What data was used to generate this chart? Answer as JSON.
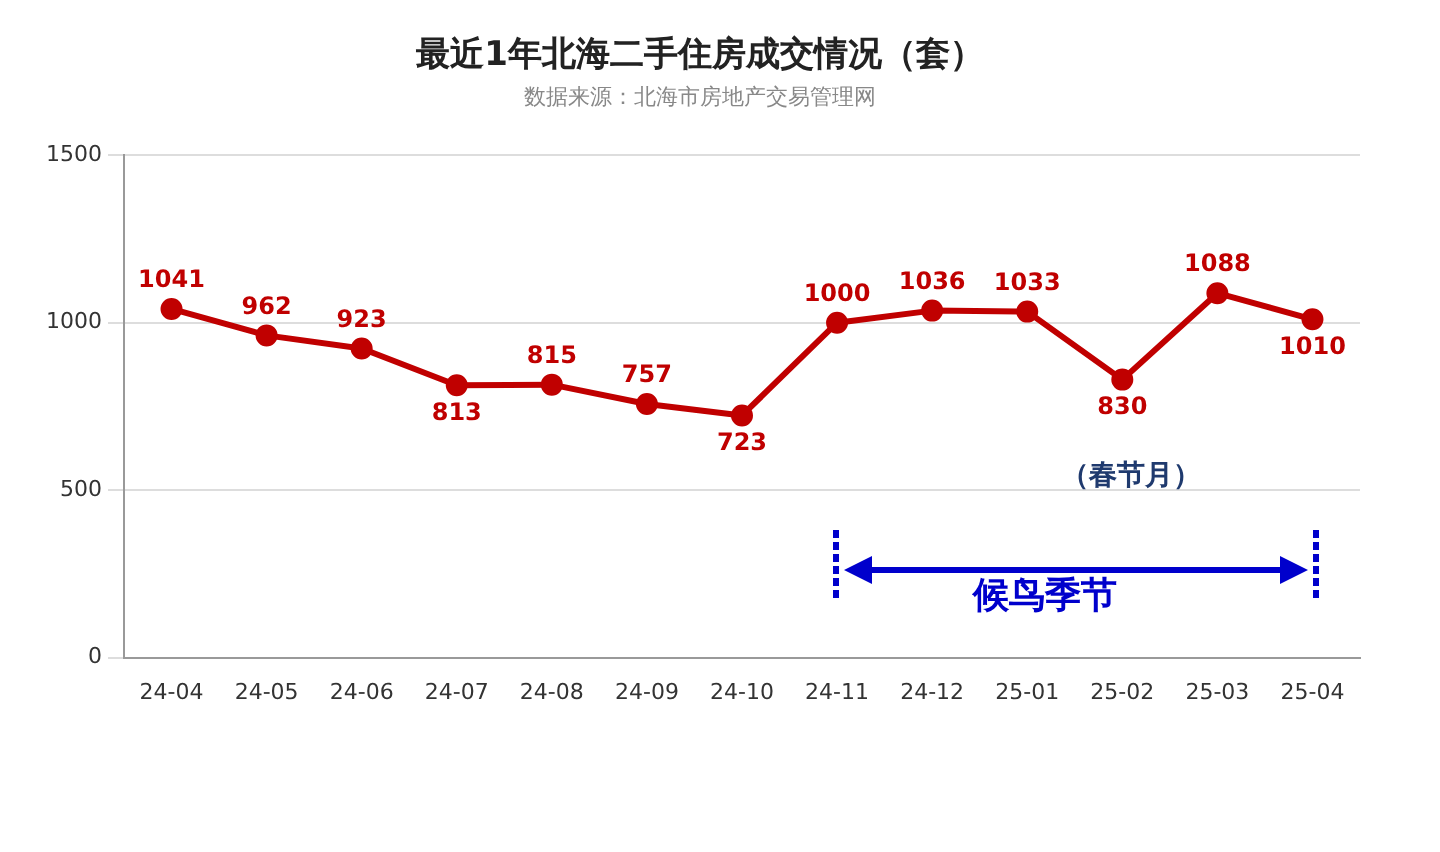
{
  "chart_data": {
    "type": "line",
    "title": "最近1年北海二手住房成交情况（套）",
    "subtitle": "数据来源：北海市房地产交易管理网",
    "categories": [
      "24-04",
      "24-05",
      "24-06",
      "24-07",
      "24-08",
      "24-09",
      "24-10",
      "24-11",
      "24-12",
      "25-01",
      "25-02",
      "25-03",
      "25-04"
    ],
    "series": [
      {
        "color": "#c00000",
        "values": [
          1041,
          962,
          923,
          813,
          815,
          757,
          723,
          1000,
          1036,
          1033,
          830,
          1088,
          1010
        ]
      }
    ],
    "ylim": [
      0,
      1500
    ],
    "yticks": [
      0,
      500,
      1000,
      1500
    ],
    "grid": "y",
    "legend": false,
    "marker": "circle",
    "line_style": "solid",
    "data_labels": true,
    "annotations": [
      "（春节月）",
      "候鸟季节"
    ]
  }
}
